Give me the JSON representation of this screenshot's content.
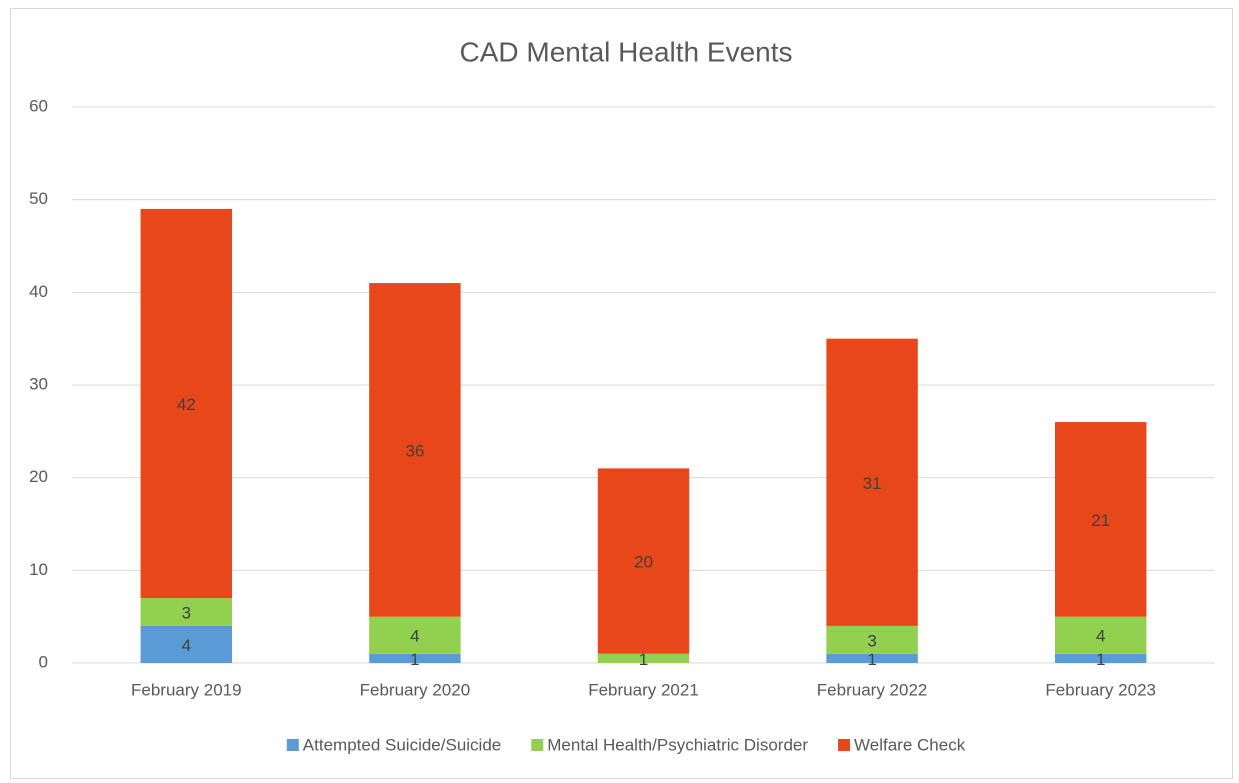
{
  "chart_data": {
    "type": "stacked_bar",
    "title": "CAD Mental Health Events",
    "categories": [
      "February 2019",
      "February 2020",
      "February 2021",
      "February 2022",
      "February 2023"
    ],
    "series": [
      {
        "name": "Attempted Suicide/Suicide",
        "color": "#5b9bd5",
        "values": [
          4,
          1,
          0,
          1,
          1
        ]
      },
      {
        "name": "Mental Health/Psychiatric Disorder",
        "color": "#92d050",
        "values": [
          3,
          4,
          1,
          3,
          4
        ]
      },
      {
        "name": "Welfare Check",
        "color": "#e8471a",
        "values": [
          42,
          36,
          20,
          31,
          21
        ]
      }
    ],
    "ylim": [
      0,
      60
    ],
    "yticks": [
      0,
      10,
      20,
      30,
      40,
      50,
      60
    ],
    "grid": true,
    "legend": "bottom"
  }
}
